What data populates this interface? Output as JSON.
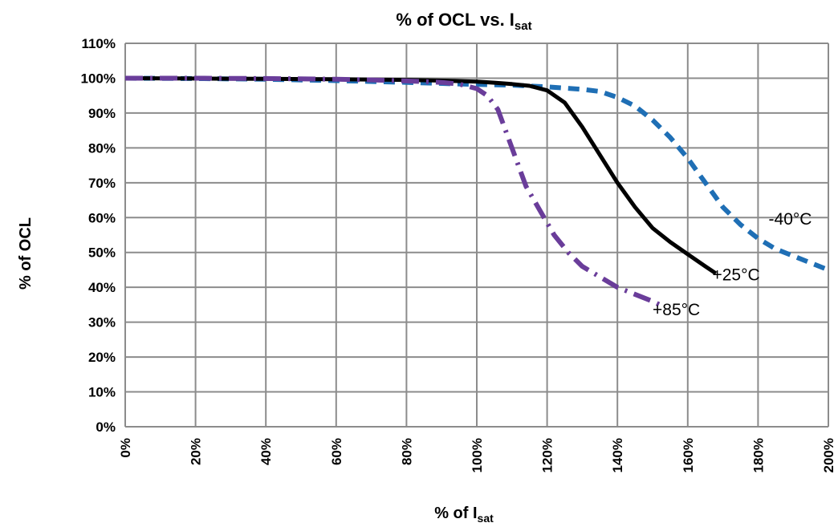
{
  "chart_data": {
    "type": "line",
    "title_main": "% of OCL vs. I",
    "title_sub": "sat",
    "xlabel_main": "% of I",
    "xlabel_sub": "sat",
    "ylabel": "% of OCL",
    "xlim": [
      0,
      200
    ],
    "ylim": [
      0,
      110
    ],
    "x_ticks": [
      0,
      20,
      40,
      60,
      80,
      100,
      120,
      140,
      160,
      180,
      200
    ],
    "y_ticks": [
      0,
      10,
      20,
      30,
      40,
      50,
      60,
      70,
      80,
      90,
      100,
      110
    ],
    "x_tick_labels": [
      "0%",
      "20%",
      "40%",
      "60%",
      "80%",
      "100%",
      "120%",
      "140%",
      "160%",
      "180%",
      "200%"
    ],
    "y_tick_labels": [
      "0%",
      "10%",
      "20%",
      "30%",
      "40%",
      "50%",
      "60%",
      "70%",
      "80%",
      "90%",
      "100%",
      "110%"
    ],
    "grid": true,
    "series": [
      {
        "name": "-40°C",
        "color": "#1f6fb5",
        "style": "dashed",
        "points": [
          [
            0,
            100
          ],
          [
            20,
            99.9
          ],
          [
            40,
            99.7
          ],
          [
            60,
            99.3
          ],
          [
            80,
            98.8
          ],
          [
            100,
            98.2
          ],
          [
            110,
            98.0
          ],
          [
            120,
            97.5
          ],
          [
            130,
            96.8
          ],
          [
            135,
            96.2
          ],
          [
            140,
            94.5
          ],
          [
            145,
            92
          ],
          [
            150,
            88
          ],
          [
            155,
            83
          ],
          [
            160,
            77
          ],
          [
            165,
            70
          ],
          [
            170,
            63
          ],
          [
            175,
            58
          ],
          [
            180,
            54
          ],
          [
            185,
            51
          ],
          [
            190,
            49
          ],
          [
            195,
            47
          ],
          [
            200,
            45
          ]
        ]
      },
      {
        "name": "+25°C",
        "color": "#000000",
        "style": "solid",
        "points": [
          [
            0,
            100
          ],
          [
            20,
            99.9
          ],
          [
            40,
            99.8
          ],
          [
            60,
            99.7
          ],
          [
            80,
            99.5
          ],
          [
            90,
            99.3
          ],
          [
            100,
            99
          ],
          [
            105,
            98.7
          ],
          [
            110,
            98.3
          ],
          [
            115,
            97.8
          ],
          [
            120,
            96.5
          ],
          [
            125,
            93
          ],
          [
            130,
            86
          ],
          [
            135,
            78
          ],
          [
            140,
            70
          ],
          [
            145,
            63
          ],
          [
            150,
            57
          ],
          [
            155,
            53
          ],
          [
            160,
            49.5
          ],
          [
            165,
            46
          ],
          [
            168,
            44
          ]
        ]
      },
      {
        "name": "+85°C",
        "color": "#6a3d9a",
        "style": "dashdot",
        "points": [
          [
            0,
            100
          ],
          [
            20,
            100
          ],
          [
            40,
            99.9
          ],
          [
            60,
            99.7
          ],
          [
            70,
            99.5
          ],
          [
            80,
            99.2
          ],
          [
            90,
            98.8
          ],
          [
            95,
            98.3
          ],
          [
            100,
            97
          ],
          [
            103,
            95
          ],
          [
            106,
            91
          ],
          [
            110,
            80
          ],
          [
            114,
            69
          ],
          [
            118,
            62
          ],
          [
            122,
            55
          ],
          [
            126,
            50
          ],
          [
            130,
            46
          ],
          [
            135,
            43
          ],
          [
            140,
            40
          ],
          [
            145,
            38
          ],
          [
            150,
            36
          ],
          [
            152,
            35
          ]
        ]
      }
    ],
    "labels": [
      {
        "text": "-40°C",
        "x": 183,
        "y": 58
      },
      {
        "text": "+25°C",
        "x": 167,
        "y": 42
      },
      {
        "text": "+85°C",
        "x": 150,
        "y": 32
      }
    ]
  }
}
